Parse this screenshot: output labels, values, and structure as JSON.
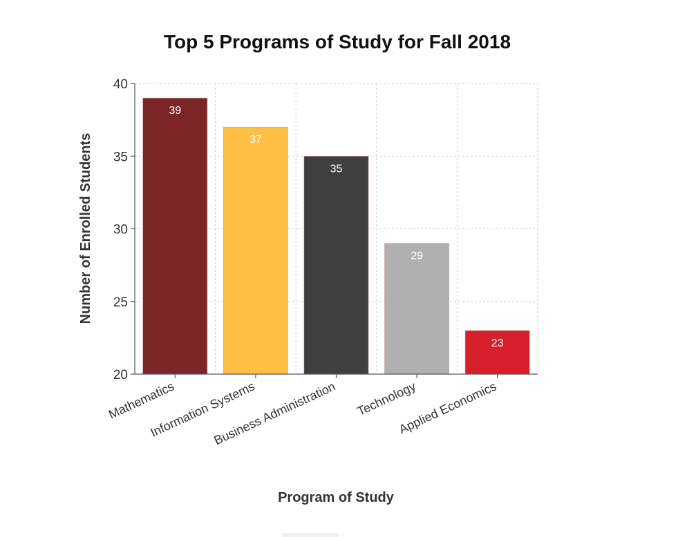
{
  "chart_data": {
    "type": "bar",
    "title": "Top 5 Programs of Study for Fall 2018",
    "xlabel": "Program of Study",
    "ylabel": "Number of Enrolled Students",
    "categories": [
      "Mathematics",
      "Information Systems",
      "Business Administration",
      "Technology",
      "Applied Economics"
    ],
    "values": [
      39,
      37,
      35,
      29,
      23
    ],
    "colors": [
      "#7b2527",
      "#ffbf42",
      "#3f3f3f",
      "#b0b0b0",
      "#d71f2b"
    ],
    "ylim": [
      20,
      40
    ],
    "yticks": [
      20,
      25,
      30,
      35,
      40
    ],
    "grid": true,
    "legend": "none",
    "data_labels": true
  }
}
